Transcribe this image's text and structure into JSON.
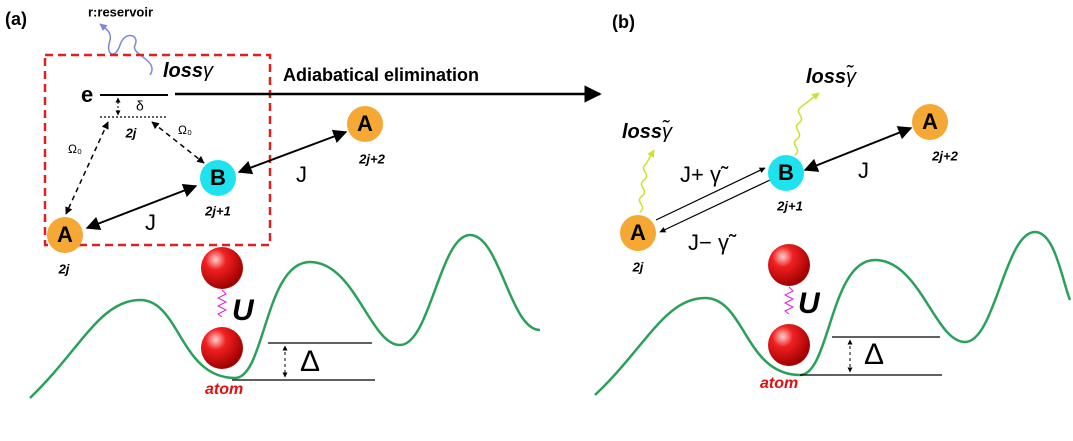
{
  "panel_a": {
    "label": "(a)",
    "reservoir": "r:reservoir",
    "loss": "loss",
    "loss_symbol": "γ",
    "excited_state": "e",
    "detuning": "δ",
    "virtual_index": "2j",
    "rabi_left": "Ω₀",
    "rabi_right": "Ω₀",
    "nodes": [
      {
        "label": "A",
        "index": "2j"
      },
      {
        "label": "B",
        "index": "2j+1"
      },
      {
        "label": "A",
        "index": "2j+2"
      }
    ],
    "coupling_left": "J",
    "coupling_right": "J",
    "interaction": "U",
    "offset": "Δ",
    "atom": "atom"
  },
  "transition": "Adiabatical elimination",
  "panel_b": {
    "label": "(b)",
    "loss_left": "loss",
    "loss_left_symbol": "γ̃",
    "loss_right": "loss",
    "loss_right_symbol": "γ̃",
    "nodes": [
      {
        "label": "A",
        "index": "2j"
      },
      {
        "label": "B",
        "index": "2j+1"
      },
      {
        "label": "A",
        "index": "2j+2"
      }
    ],
    "coupling_forward": "J+ γ̃",
    "coupling_backward": "J− γ̃",
    "coupling_right": "J",
    "interaction": "U",
    "offset": "Δ",
    "atom": "atom"
  }
}
